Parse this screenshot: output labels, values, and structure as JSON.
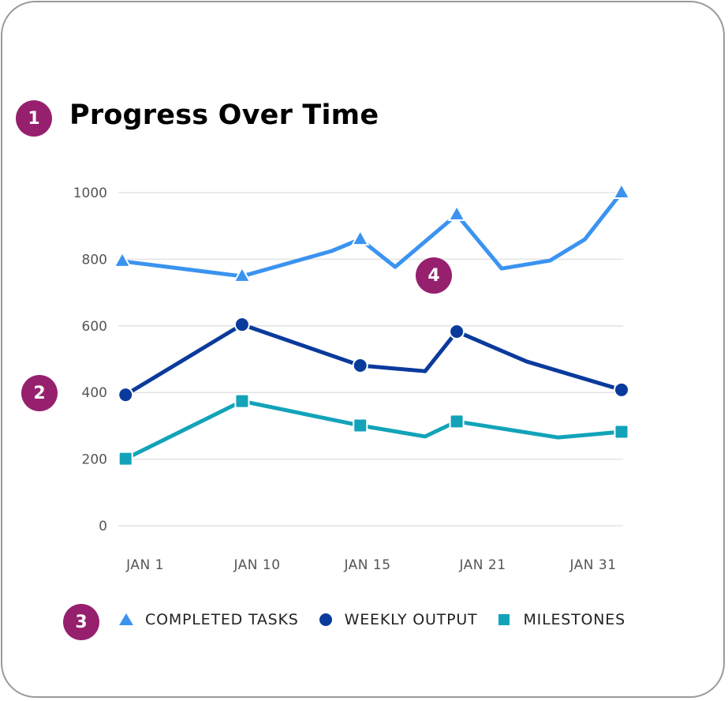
{
  "badges": [
    "1",
    "2",
    "3",
    "4"
  ],
  "colors": {
    "completed": "#3b93f0",
    "weekly": "#0a3a9c",
    "milestones": "#12a3b9",
    "badge": "#96206e",
    "grid": "#e3e3e3"
  },
  "chart_data": {
    "type": "line",
    "title": "Progress Over Time",
    "xlabel": "",
    "ylabel": "",
    "ylim": [
      0,
      1000
    ],
    "yticks": [
      "0",
      "200",
      "400",
      "600",
      "800",
      "1000"
    ],
    "xticks": [
      "JAN 1",
      "JAN 10",
      "JAN 15",
      "JAN 21",
      "JAN 31"
    ],
    "x_unit": "day of January",
    "grid": "horizontal",
    "legend_position": "bottom",
    "series": [
      {
        "name": "COMPLETED TASKS",
        "marker": "triangle",
        "color": "#3b93f0",
        "points": [
          {
            "x": 1,
            "y": 794,
            "marker": true
          },
          {
            "x": 8.2,
            "y": 749,
            "marker": true
          },
          {
            "x": 13.6,
            "y": 825,
            "marker": false
          },
          {
            "x": 15.3,
            "y": 860,
            "marker": true
          },
          {
            "x": 17.4,
            "y": 777,
            "marker": false
          },
          {
            "x": 21.1,
            "y": 934,
            "marker": true
          },
          {
            "x": 23.8,
            "y": 772,
            "marker": false
          },
          {
            "x": 26.7,
            "y": 796,
            "marker": false
          },
          {
            "x": 28.8,
            "y": 860,
            "marker": false
          },
          {
            "x": 31,
            "y": 1000,
            "marker": true
          }
        ]
      },
      {
        "name": "WEEKLY OUTPUT",
        "marker": "circle",
        "color": "#0a3a9c",
        "points": [
          {
            "x": 1.2,
            "y": 393,
            "marker": true
          },
          {
            "x": 8.2,
            "y": 604,
            "marker": true
          },
          {
            "x": 15.3,
            "y": 481,
            "marker": true
          },
          {
            "x": 19.2,
            "y": 464,
            "marker": false
          },
          {
            "x": 21.1,
            "y": 583,
            "marker": true
          },
          {
            "x": 25.3,
            "y": 493,
            "marker": false
          },
          {
            "x": 31,
            "y": 408,
            "marker": true
          }
        ]
      },
      {
        "name": "MILESTONES",
        "marker": "square",
        "color": "#12a3b9",
        "points": [
          {
            "x": 1.2,
            "y": 201,
            "marker": true
          },
          {
            "x": 8.2,
            "y": 374,
            "marker": true
          },
          {
            "x": 15.3,
            "y": 301,
            "marker": true
          },
          {
            "x": 19.2,
            "y": 268,
            "marker": false
          },
          {
            "x": 21.1,
            "y": 313,
            "marker": true
          },
          {
            "x": 27.2,
            "y": 265,
            "marker": false
          },
          {
            "x": 31,
            "y": 282,
            "marker": true
          }
        ]
      }
    ]
  }
}
